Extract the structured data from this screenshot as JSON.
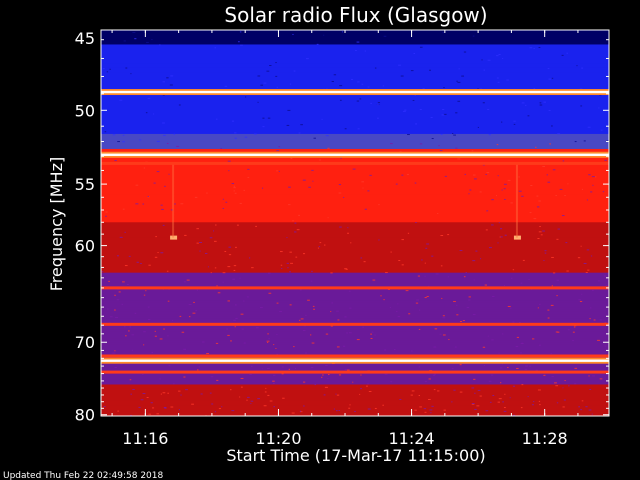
{
  "footer": {
    "updated": "Updated Thu Feb 22 02:49:58 2018"
  },
  "chart_data": {
    "type": "heatmap",
    "title": "Solar radio Flux (Glasgow)",
    "xlabel": "Start Time (17-Mar-17 11:15:00)",
    "ylabel": "Frequency [MHz]",
    "xlim": [
      "11:14:40",
      "11:29:56"
    ],
    "ylim": [
      45.5,
      80.2
    ],
    "x_ticks": [
      "11:16",
      "11:20",
      "11:24",
      "11:28"
    ],
    "y_ticks": [
      45,
      50,
      55,
      60,
      70,
      80
    ],
    "y_scale": "reciprocal",
    "colormap": [
      "#000066",
      "#1a22ee",
      "#4848c4",
      "#6a1a99",
      "#c01010",
      "#ff2010",
      "#ff9a3a",
      "#ffffff"
    ],
    "bright_bands_mhz": [
      48.9,
      52.9,
      72.3
    ],
    "moderate_bands_mhz": [
      53.5,
      64.0,
      67.9,
      71.7,
      73.8
    ],
    "hot_spots": [
      {
        "time": "11:16:50",
        "freq_mhz": 59.3
      },
      {
        "time": "11:27:10",
        "freq_mhz": 59.3
      }
    ],
    "grid": false
  }
}
